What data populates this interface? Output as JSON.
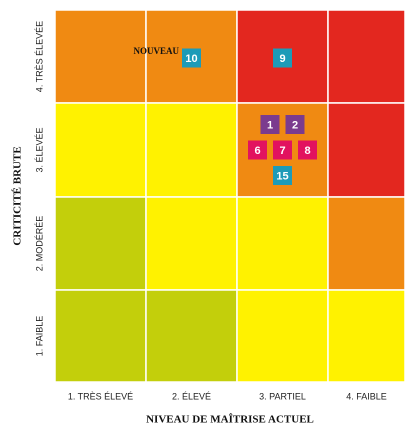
{
  "y_axis_title": "CRITICITÉ BRUTE",
  "x_axis_title": "NIVEAU DE MAÎTRISE ACTUEL",
  "rows": [
    "4. TRÈS ÉLEVÉE",
    "3. ÉLEVÉE",
    "2. MODÉRÉE",
    "1. FAIBLE"
  ],
  "columns": [
    "1. TRÈS ÉLEVÉ",
    "2. ÉLEVÉ",
    "3. PARTIEL",
    "4. FAIBLE"
  ],
  "grid": [
    [
      {
        "color": "#f08a12",
        "marker_rows": []
      },
      {
        "color": "#f08a12",
        "marker_rows": [
          [
            {
              "label": "10",
              "color": "#1d9bb8",
              "note": "NOUVEAU"
            }
          ]
        ]
      },
      {
        "color": "#e3271f",
        "marker_rows": [
          [
            {
              "label": "9",
              "color": "#1d9bb8"
            }
          ]
        ]
      },
      {
        "color": "#e3271f",
        "marker_rows": []
      }
    ],
    [
      {
        "color": "#fff200",
        "marker_rows": []
      },
      {
        "color": "#fff200",
        "marker_rows": []
      },
      {
        "color": "#f08a12",
        "marker_rows": [
          [
            {
              "label": "1",
              "color": "#7b3b8e"
            },
            {
              "label": "2",
              "color": "#7b3b8e"
            }
          ],
          [
            {
              "label": "6",
              "color": "#e2125f"
            },
            {
              "label": "7",
              "color": "#e2125f"
            },
            {
              "label": "8",
              "color": "#e2125f"
            }
          ],
          [
            {
              "label": "15",
              "color": "#1d9bb8"
            }
          ]
        ]
      },
      {
        "color": "#e3271f",
        "marker_rows": []
      }
    ],
    [
      {
        "color": "#c3cf0b",
        "marker_rows": []
      },
      {
        "color": "#fff200",
        "marker_rows": []
      },
      {
        "color": "#fff200",
        "marker_rows": []
      },
      {
        "color": "#f08a12",
        "marker_rows": []
      }
    ],
    [
      {
        "color": "#c3cf0b",
        "marker_rows": []
      },
      {
        "color": "#c3cf0b",
        "marker_rows": []
      },
      {
        "color": "#fff200",
        "marker_rows": []
      },
      {
        "color": "#fff200",
        "marker_rows": []
      }
    ]
  ]
}
